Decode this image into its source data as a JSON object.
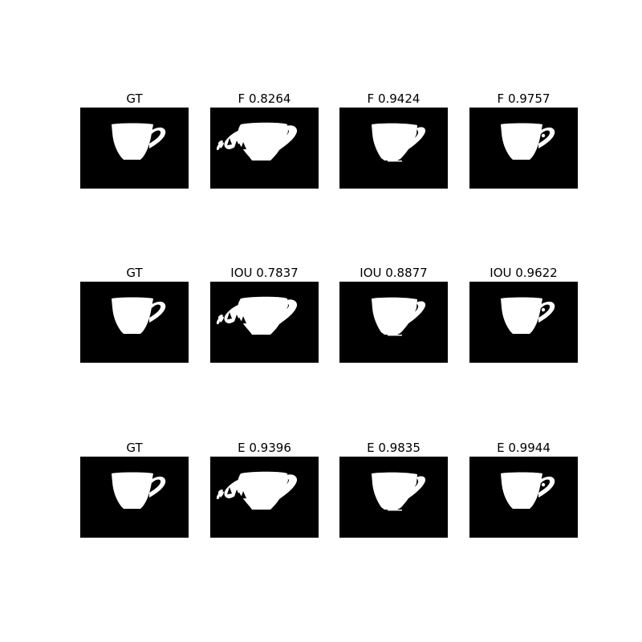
{
  "colors": {
    "background": "#ffffff",
    "mask_background": "#000000",
    "mask_foreground": "#ffffff"
  },
  "rows": [
    {
      "metric": "F",
      "panels": [
        {
          "title": "GT",
          "variant": "gt"
        },
        {
          "title": "F 0.8264",
          "variant": "noisy"
        },
        {
          "title": "F 0.9424",
          "variant": "rough"
        },
        {
          "title": "F 0.9757",
          "variant": "good"
        }
      ]
    },
    {
      "metric": "IOU",
      "panels": [
        {
          "title": "GT",
          "variant": "gt"
        },
        {
          "title": "IOU 0.7837",
          "variant": "noisy"
        },
        {
          "title": "IOU 0.8877",
          "variant": "rough"
        },
        {
          "title": "IOU 0.9622",
          "variant": "good"
        }
      ]
    },
    {
      "metric": "E",
      "panels": [
        {
          "title": "GT",
          "variant": "gt"
        },
        {
          "title": "E 0.9396",
          "variant": "noisy"
        },
        {
          "title": "E 0.9835",
          "variant": "rough"
        },
        {
          "title": "E 0.9944",
          "variant": "good"
        }
      ]
    }
  ]
}
